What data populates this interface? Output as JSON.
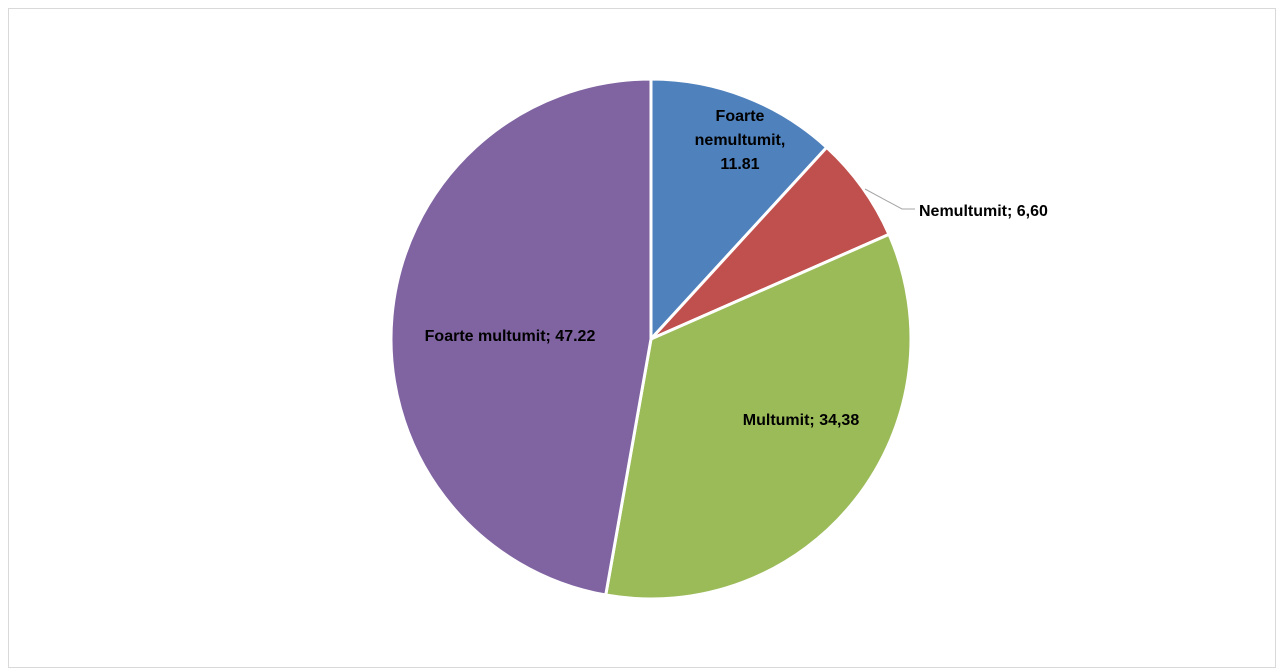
{
  "chart_data": {
    "type": "pie",
    "title": "",
    "start_angle_deg": 0,
    "direction": "clockwise",
    "slices": [
      {
        "name": "Foarte nemultumit",
        "value": 11.81,
        "color": "#4F81BD",
        "label_lines": [
          "Foarte",
          "nemultumit,",
          "11.81"
        ]
      },
      {
        "name": "Nemultumit",
        "value": 6.6,
        "color": "#C0504D",
        "label_lines": [
          "Nemultumit; 6,60"
        ]
      },
      {
        "name": "Multumit",
        "value": 34.38,
        "color": "#9BBB59",
        "label_lines": [
          "Multumit; 34,38"
        ]
      },
      {
        "name": "Foarte multumit",
        "value": 47.22,
        "color": "#8064A2",
        "label_lines": [
          "Foarte multumit; 47.22"
        ]
      }
    ]
  }
}
